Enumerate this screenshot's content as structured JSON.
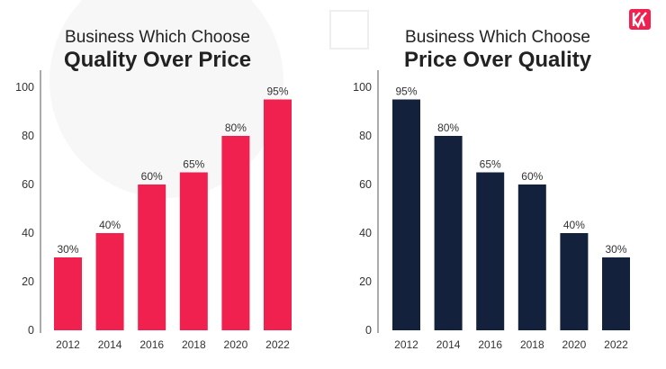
{
  "logo": {
    "text": "K",
    "color": "#f0204f"
  },
  "chart_data": [
    {
      "type": "bar",
      "title_line1": "Business Which Choose",
      "title_line2": "Quality Over Price",
      "categories": [
        "2012",
        "2014",
        "2016",
        "2018",
        "2020",
        "2022"
      ],
      "values": [
        30,
        40,
        60,
        65,
        80,
        95
      ],
      "data_labels": [
        "30%",
        "40%",
        "60%",
        "65%",
        "80%",
        "95%"
      ],
      "yticks": [
        "0",
        "20",
        "40",
        "60",
        "80",
        "100"
      ],
      "ylim": [
        0,
        100
      ],
      "color": "#f0204f",
      "grid": false
    },
    {
      "type": "bar",
      "title_line1": "Business Which Choose",
      "title_line2": "Price Over Quality",
      "categories": [
        "2012",
        "2014",
        "2016",
        "2018",
        "2020",
        "2022"
      ],
      "values": [
        95,
        80,
        65,
        60,
        40,
        30
      ],
      "data_labels": [
        "95%",
        "80%",
        "65%",
        "60%",
        "40%",
        "30%"
      ],
      "yticks": [
        "0",
        "20",
        "40",
        "60",
        "80",
        "100"
      ],
      "ylim": [
        0,
        100
      ],
      "color": "#14213d",
      "grid": false
    }
  ]
}
